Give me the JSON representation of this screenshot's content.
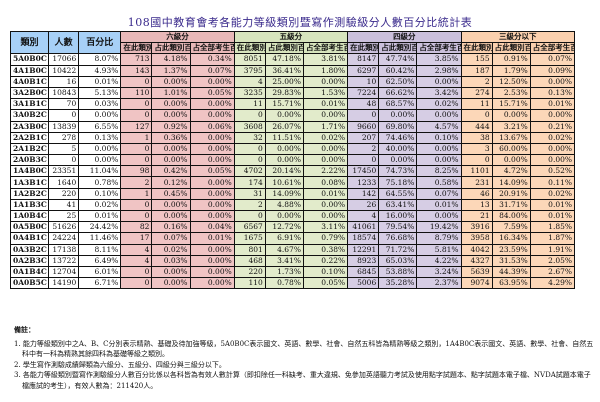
{
  "title": "108國中教育會考各能力等級類別暨寫作測驗級分人數百分比統計表",
  "colors": {
    "base_header": "#a7d0f7",
    "level6": "#e8b8b8",
    "level5": "#d7e4bd",
    "level4": "#cbc0dc",
    "level3": "#fbd0ae",
    "title": "#3a2a8c"
  },
  "headers": {
    "category": "類別",
    "count": "人數",
    "percent": "百分比",
    "groups": [
      "六級分",
      "五級分",
      "四級分",
      "三級分以下"
    ],
    "sub": [
      "在此類別人數",
      "占此類別百分比",
      "占全部考生百分比"
    ]
  },
  "rows": [
    {
      "cat": "5A0B0C",
      "n": "17066",
      "p": "8.07%",
      "g6": [
        "713",
        "4.18%",
        "0.34%"
      ],
      "g5": [
        "8051",
        "47.18%",
        "3.81%"
      ],
      "g4": [
        "8147",
        "47.74%",
        "3.85%"
      ],
      "g3": [
        "155",
        "0.91%",
        "0.07%"
      ]
    },
    {
      "cat": "4A1B0C",
      "n": "10422",
      "p": "4.93%",
      "g6": [
        "143",
        "1.37%",
        "0.07%"
      ],
      "g5": [
        "3795",
        "36.41%",
        "1.80%"
      ],
      "g4": [
        "6297",
        "60.42%",
        "2.98%"
      ],
      "g3": [
        "187",
        "1.79%",
        "0.09%"
      ]
    },
    {
      "cat": "4A0B1C",
      "n": "16",
      "p": "0.01%",
      "g6": [
        "0",
        "0.00%",
        "0.00%"
      ],
      "g5": [
        "4",
        "25.00%",
        "0.00%"
      ],
      "g4": [
        "10",
        "62.50%",
        "0.00%"
      ],
      "g3": [
        "2",
        "12.50%",
        "0.00%"
      ]
    },
    {
      "cat": "3A2B0C",
      "n": "10843",
      "p": "5.13%",
      "g6": [
        "110",
        "1.01%",
        "0.05%"
      ],
      "g5": [
        "3235",
        "29.83%",
        "1.53%"
      ],
      "g4": [
        "7224",
        "66.62%",
        "3.42%"
      ],
      "g3": [
        "274",
        "2.53%",
        "0.13%"
      ]
    },
    {
      "cat": "3A1B1C",
      "n": "70",
      "p": "0.03%",
      "g6": [
        "0",
        "0.00%",
        "0.00%"
      ],
      "g5": [
        "11",
        "15.71%",
        "0.01%"
      ],
      "g4": [
        "48",
        "68.57%",
        "0.02%"
      ],
      "g3": [
        "11",
        "15.71%",
        "0.01%"
      ]
    },
    {
      "cat": "3A0B2C",
      "n": "0",
      "p": "0.00%",
      "g6": [
        "0",
        "0.00%",
        "0.00%"
      ],
      "g5": [
        "0",
        "0.00%",
        "0.00%"
      ],
      "g4": [
        "0",
        "0.00%",
        "0.00%"
      ],
      "g3": [
        "0",
        "0.00%",
        "0.00%"
      ]
    },
    {
      "cat": "2A3B0C",
      "n": "13839",
      "p": "6.55%",
      "g6": [
        "127",
        "0.92%",
        "0.06%"
      ],
      "g5": [
        "3608",
        "26.07%",
        "1.71%"
      ],
      "g4": [
        "9660",
        "69.80%",
        "4.57%"
      ],
      "g3": [
        "444",
        "3.21%",
        "0.21%"
      ]
    },
    {
      "cat": "2A2B1C",
      "n": "278",
      "p": "0.13%",
      "g6": [
        "1",
        "0.36%",
        "0.00%"
      ],
      "g5": [
        "32",
        "11.51%",
        "0.02%"
      ],
      "g4": [
        "207",
        "74.46%",
        "0.10%"
      ],
      "g3": [
        "38",
        "13.67%",
        "0.02%"
      ]
    },
    {
      "cat": "2A1B2C",
      "n": "5",
      "p": "0.00%",
      "g6": [
        "0",
        "0.00%",
        "0.00%"
      ],
      "g5": [
        "0",
        "0.00%",
        "0.00%"
      ],
      "g4": [
        "2",
        "40.00%",
        "0.00%"
      ],
      "g3": [
        "3",
        "60.00%",
        "0.00%"
      ]
    },
    {
      "cat": "2A0B3C",
      "n": "0",
      "p": "0.00%",
      "g6": [
        "0",
        "0.00%",
        "0.00%"
      ],
      "g5": [
        "0",
        "0.00%",
        "0.00%"
      ],
      "g4": [
        "0",
        "0.00%",
        "0.00%"
      ],
      "g3": [
        "0",
        "0.00%",
        "0.00%"
      ]
    },
    {
      "cat": "1A4B0C",
      "n": "23351",
      "p": "11.04%",
      "g6": [
        "98",
        "0.42%",
        "0.05%"
      ],
      "g5": [
        "4702",
        "20.14%",
        "2.22%"
      ],
      "g4": [
        "17450",
        "74.73%",
        "8.25%"
      ],
      "g3": [
        "1101",
        "4.72%",
        "0.52%"
      ]
    },
    {
      "cat": "1A3B1C",
      "n": "1640",
      "p": "0.78%",
      "g6": [
        "2",
        "0.12%",
        "0.00%"
      ],
      "g5": [
        "174",
        "10.61%",
        "0.08%"
      ],
      "g4": [
        "1233",
        "75.18%",
        "0.58%"
      ],
      "g3": [
        "231",
        "14.09%",
        "0.11%"
      ]
    },
    {
      "cat": "1A2B2C",
      "n": "220",
      "p": "0.10%",
      "g6": [
        "1",
        "0.45%",
        "0.00%"
      ],
      "g5": [
        "31",
        "14.09%",
        "0.01%"
      ],
      "g4": [
        "142",
        "64.55%",
        "0.07%"
      ],
      "g3": [
        "46",
        "20.91%",
        "0.02%"
      ]
    },
    {
      "cat": "1A1B3C",
      "n": "41",
      "p": "0.02%",
      "g6": [
        "0",
        "0.00%",
        "0.00%"
      ],
      "g5": [
        "2",
        "4.88%",
        "0.00%"
      ],
      "g4": [
        "26",
        "63.41%",
        "0.01%"
      ],
      "g3": [
        "13",
        "31.71%",
        "0.01%"
      ]
    },
    {
      "cat": "1A0B4C",
      "n": "25",
      "p": "0.01%",
      "g6": [
        "0",
        "0.00%",
        "0.00%"
      ],
      "g5": [
        "0",
        "0.00%",
        "0.00%"
      ],
      "g4": [
        "4",
        "16.00%",
        "0.00%"
      ],
      "g3": [
        "21",
        "84.00%",
        "0.01%"
      ]
    },
    {
      "cat": "0A5B0C",
      "n": "51626",
      "p": "24.42%",
      "g6": [
        "82",
        "0.16%",
        "0.04%"
      ],
      "g5": [
        "6567",
        "12.72%",
        "3.11%"
      ],
      "g4": [
        "41061",
        "79.54%",
        "19.42%"
      ],
      "g3": [
        "3916",
        "7.59%",
        "1.85%"
      ]
    },
    {
      "cat": "0A4B1C",
      "n": "24224",
      "p": "11.46%",
      "g6": [
        "17",
        "0.07%",
        "0.01%"
      ],
      "g5": [
        "1675",
        "6.91%",
        "0.79%"
      ],
      "g4": [
        "18574",
        "76.68%",
        "8.79%"
      ],
      "g3": [
        "3958",
        "16.34%",
        "1.87%"
      ]
    },
    {
      "cat": "0A3B2C",
      "n": "17138",
      "p": "8.11%",
      "g6": [
        "4",
        "0.02%",
        "0.00%"
      ],
      "g5": [
        "801",
        "4.67%",
        "0.38%"
      ],
      "g4": [
        "12291",
        "71.72%",
        "5.81%"
      ],
      "g3": [
        "4042",
        "23.59%",
        "1.91%"
      ]
    },
    {
      "cat": "0A2B3C",
      "n": "13722",
      "p": "6.49%",
      "g6": [
        "4",
        "0.03%",
        "0.00%"
      ],
      "g5": [
        "468",
        "3.41%",
        "0.22%"
      ],
      "g4": [
        "8923",
        "65.03%",
        "4.22%"
      ],
      "g3": [
        "4327",
        "31.53%",
        "2.05%"
      ]
    },
    {
      "cat": "0A1B4C",
      "n": "12704",
      "p": "6.01%",
      "g6": [
        "0",
        "0.00%",
        "0.00%"
      ],
      "g5": [
        "220",
        "1.73%",
        "0.10%"
      ],
      "g4": [
        "6845",
        "53.88%",
        "3.24%"
      ],
      "g3": [
        "5639",
        "44.39%",
        "2.67%"
      ]
    },
    {
      "cat": "0A0B5C",
      "n": "14190",
      "p": "6.71%",
      "g6": [
        "0",
        "0.00%",
        "0.00%"
      ],
      "g5": [
        "110",
        "0.78%",
        "0.05%"
      ],
      "g4": [
        "5006",
        "35.28%",
        "2.37%"
      ],
      "g3": [
        "9074",
        "63.95%",
        "4.29%"
      ]
    }
  ],
  "notes": {
    "heading": "備註：",
    "items": [
      "1. 能力等級類別中之A、B、C分別表示精熟、基礎及待加強等級，5A0B0C表示國文、英語、數學、社會、自然五科皆為精熟等級之類別，1A4B0C表示國文、英語、數學、社會、自然五科中有一科為精熟其餘四科為基礎等級之類別。",
      "2. 學生寫作測驗成績歸類為六級分、五級分、四級分與三級分以下。",
      "3. 各能力等級類別暨寫作測驗級分人數百分比係以各科皆為有效人數計算（即扣除任一科缺考、重大違規、免參加英語聽力考試及使用點字試題本、點字試題本電子檔、NVDA試題本電子檔應試的考生），有效人數為：211420人。"
    ]
  }
}
